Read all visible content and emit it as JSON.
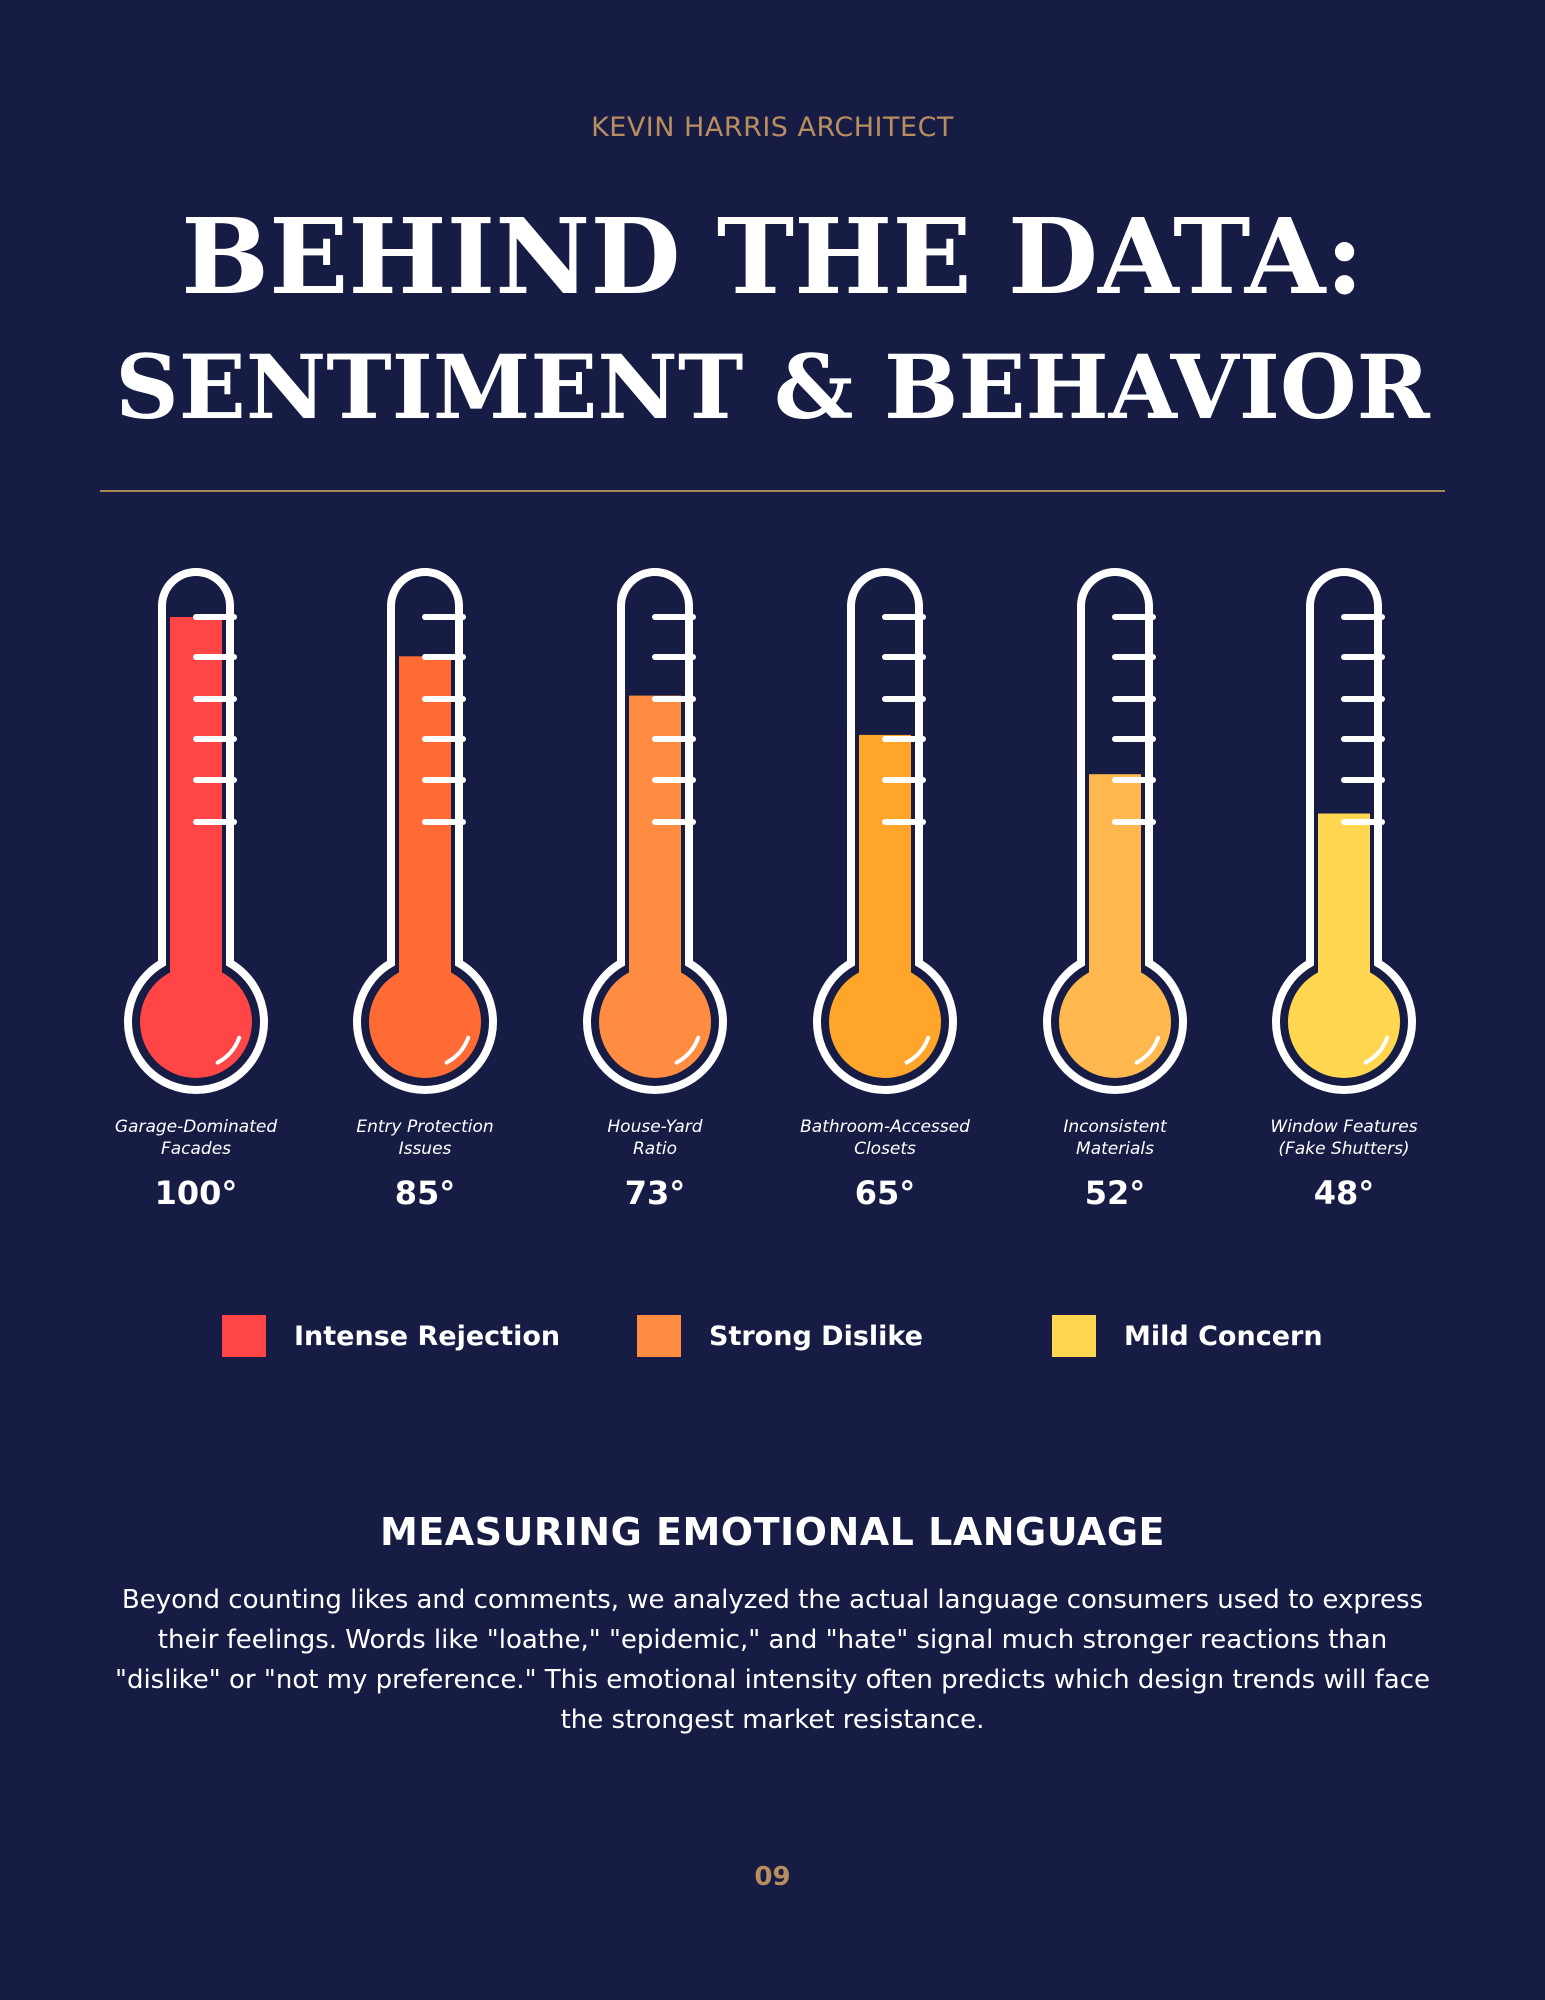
{
  "header": {
    "brand": "KEVIN HARRIS ARCHITECT",
    "title_line1": "BEHIND THE DATA:",
    "title_line2": "SENTIMENT & BEHAVIOR"
  },
  "chart_data": {
    "type": "bar",
    "style": "thermometer",
    "unit": "°",
    "ylim": [
      0,
      100
    ],
    "categories": [
      [
        "Garage-Dominated",
        "Facades"
      ],
      [
        "Entry Protection",
        "Issues"
      ],
      [
        "House-Yard",
        "Ratio"
      ],
      [
        "Bathroom-Accessed",
        "Closets"
      ],
      [
        "Inconsistent",
        "Materials"
      ],
      [
        "Window Features",
        "(Fake Shutters)"
      ]
    ],
    "values": [
      100,
      85,
      73,
      65,
      52,
      48
    ],
    "value_labels": [
      "100°",
      "85°",
      "73°",
      "65°",
      "52°",
      "48°"
    ],
    "fill_levels": [
      1.0,
      0.9,
      0.8,
      0.7,
      0.6,
      0.5
    ],
    "colors": [
      "#ff4546",
      "#ff6a35",
      "#ff8c40",
      "#ffa52a",
      "#ffb84d",
      "#ffd64f"
    ],
    "legend_position": "bottom"
  },
  "legend": {
    "items": [
      {
        "label": "Intense Rejection",
        "color": "#ff4546"
      },
      {
        "label": "Strong Dislike",
        "color": "#ff8c40"
      },
      {
        "label": "Mild Concern",
        "color": "#ffd64f"
      }
    ]
  },
  "section": {
    "title": "MEASURING EMOTIONAL LANGUAGE",
    "body": "Beyond counting likes and comments, we analyzed the actual language consumers used to express their feelings. Words like \"loathe,\" \"epidemic,\" and \"hate\" signal much stronger reactions than \"dislike\" or \"not my preference.\" This emotional intensity often predicts which design trends will face the strongest market resistance."
  },
  "footer": {
    "page_number": "09"
  },
  "colors": {
    "background": "#161c44",
    "accent": "#b98e5f",
    "text": "#ffffff"
  }
}
